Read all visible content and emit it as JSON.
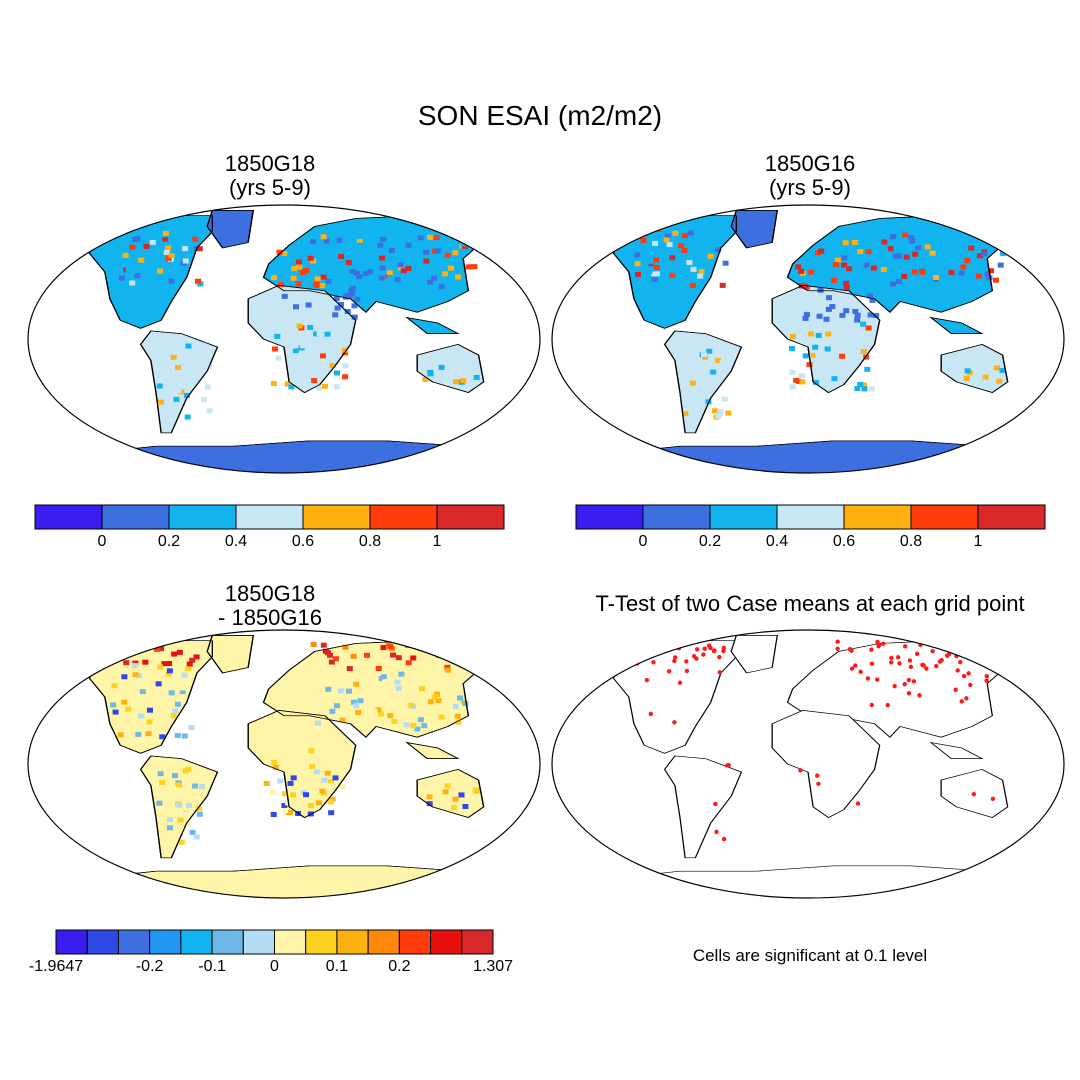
{
  "title": "SON ESAI (m2/m2)",
  "panels": [
    {
      "id": "p1",
      "title_line1": "1850G18",
      "title_line2": "(yrs 5-9)"
    },
    {
      "id": "p2",
      "title_line1": "1850G16",
      "title_line2": "(yrs 5-9)"
    },
    {
      "id": "p3",
      "title_line1": "1850G18",
      "title_line2": "- 1850G16"
    },
    {
      "id": "p4",
      "title_line1": "T-Test of two Case means at each grid point",
      "title_line2": ""
    }
  ],
  "colorbar_abs": {
    "colors": [
      "#3a1ef0",
      "#3d6fe0",
      "#12b4f0",
      "#c9e6f4",
      "#ffb20f",
      "#ff3c0a",
      "#d8282a"
    ],
    "tick_labels": [
      "0",
      "0.2",
      "0.4",
      "0.6",
      "0.8",
      "1"
    ]
  },
  "colorbar_diff": {
    "colors": [
      "#3a1ef0",
      "#2e49e6",
      "#3d6fe0",
      "#2196f3",
      "#12b4f0",
      "#6fb8ea",
      "#b4dcf2",
      "#fff5a8",
      "#ffd21f",
      "#ffb20f",
      "#ff8a0a",
      "#ff3c0a",
      "#e80f0f",
      "#d8282a"
    ],
    "tick_labels": [
      "-1.9647",
      "-0.2",
      "-0.1",
      "0",
      "0.1",
      "0.2",
      "1.307"
    ]
  },
  "note": "Cells are significant at 0.1 level",
  "colors": {
    "ocean": "#ffffff",
    "antarctica_abs": "#3d6fe0",
    "antarctica_diff": "#fff5a8",
    "sig_cells": "#ff1a1a"
  }
}
